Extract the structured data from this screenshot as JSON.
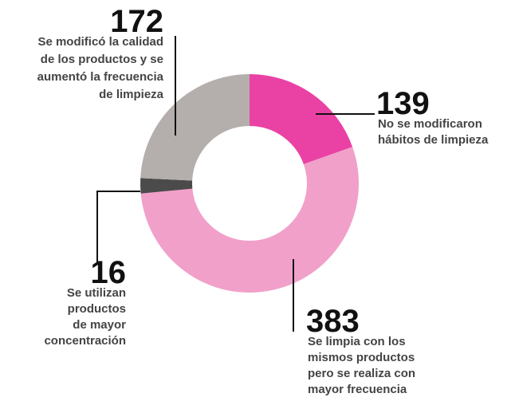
{
  "chart_data": {
    "type": "donut",
    "values": [
      139,
      383,
      16,
      172
    ],
    "categories": [
      [
        "No se modificaron",
        "hábitos de limpieza"
      ],
      [
        "Se limpia con los",
        "mismos productos",
        "pero se realiza con",
        "mayor frecuencia"
      ],
      [
        "Se utilizan",
        "productos",
        "de mayor",
        "concentración"
      ],
      [
        "Se modificó la calidad",
        "de los productos y se",
        "aumentó la frecuencia",
        "de limpieza"
      ]
    ],
    "colors": [
      "#ea42a4",
      "#f1a0ca",
      "#4b4b4b",
      "#b4afac"
    ]
  }
}
